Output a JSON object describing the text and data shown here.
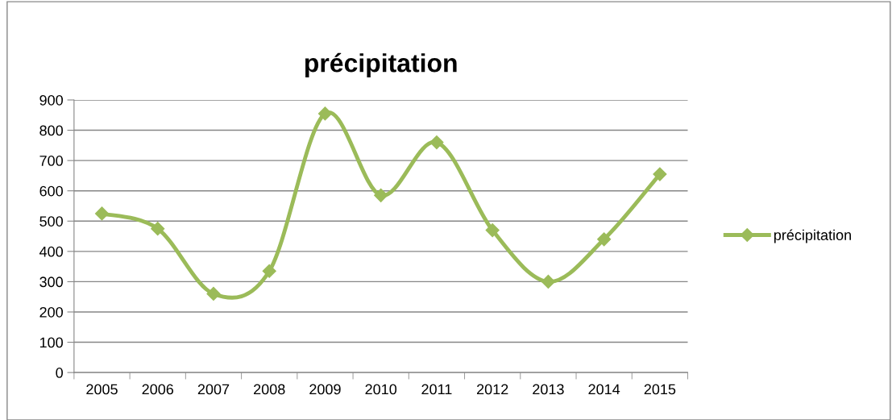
{
  "chart_data": {
    "type": "line",
    "title": "précipitation",
    "categories": [
      "2005",
      "2006",
      "2007",
      "2008",
      "2009",
      "2010",
      "2011",
      "2012",
      "2013",
      "2014",
      "2015"
    ],
    "series": [
      {
        "name": "précipitation",
        "color": "#9bbb59",
        "values": [
          525,
          475,
          260,
          335,
          855,
          585,
          760,
          470,
          300,
          440,
          655
        ]
      }
    ],
    "ylim": [
      0,
      900
    ],
    "yticks": [
      0,
      100,
      200,
      300,
      400,
      500,
      600,
      700,
      800,
      900
    ],
    "grid": "y",
    "legend": "right",
    "marker": "diamond",
    "line_style": "solid"
  }
}
